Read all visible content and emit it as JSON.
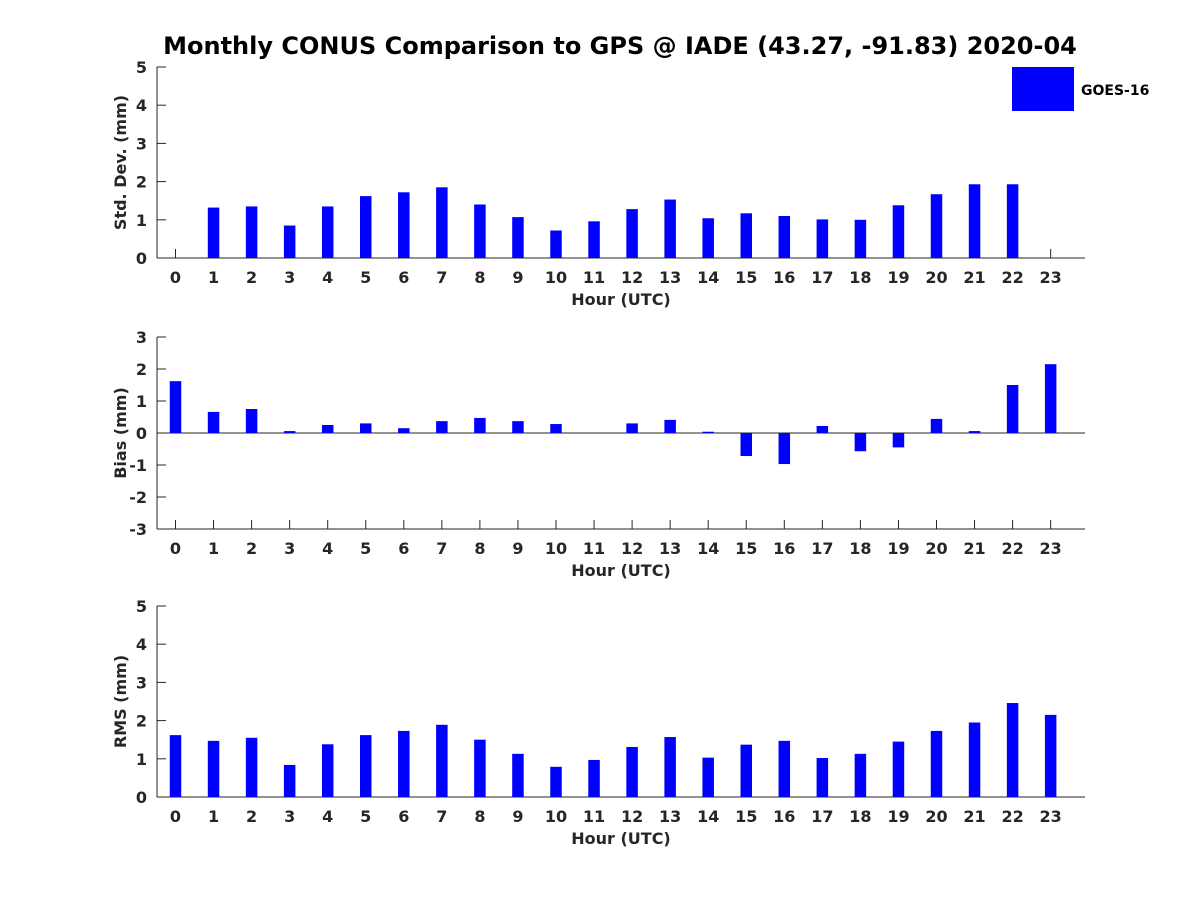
{
  "chart_data": {
    "title": "Monthly CONUS Comparison to GPS @ IADE (43.27, -91.83) 2020-04",
    "legend": {
      "label": "GOES-16",
      "color": "#0000ff",
      "placement": "top-right"
    },
    "bar_color": "#0000ff",
    "panels": [
      {
        "type": "bar",
        "ylabel": "Std. Dev. (mm)",
        "xlabel": "Hour (UTC)",
        "ylim": [
          0,
          5
        ],
        "yticks": [
          0,
          1,
          2,
          3,
          4,
          5
        ],
        "categories": [
          0,
          1,
          2,
          3,
          4,
          5,
          6,
          7,
          8,
          9,
          10,
          11,
          12,
          13,
          14,
          15,
          16,
          17,
          18,
          19,
          20,
          21,
          22,
          23
        ],
        "values": [
          0,
          1.32,
          1.35,
          0.85,
          1.35,
          1.62,
          1.72,
          1.85,
          1.4,
          1.07,
          0.72,
          0.96,
          1.28,
          1.53,
          1.04,
          1.17,
          1.1,
          1.01,
          1.0,
          1.38,
          1.67,
          1.93,
          1.93,
          0
        ]
      },
      {
        "type": "bar",
        "ylabel": "Bias (mm)",
        "xlabel": "Hour (UTC)",
        "ylim": [
          -3,
          3
        ],
        "yticks": [
          -3,
          -2,
          -1,
          0,
          1,
          2,
          3
        ],
        "zero_line": true,
        "categories": [
          0,
          1,
          2,
          3,
          4,
          5,
          6,
          7,
          8,
          9,
          10,
          11,
          12,
          13,
          14,
          15,
          16,
          17,
          18,
          19,
          20,
          21,
          22,
          23
        ],
        "values": [
          1.62,
          0.66,
          0.75,
          0.06,
          0.25,
          0.3,
          0.15,
          0.37,
          0.47,
          0.37,
          0.28,
          0,
          0.3,
          0.41,
          0.04,
          -0.72,
          -0.97,
          0.22,
          -0.57,
          -0.45,
          0.44,
          0.06,
          1.5,
          2.15
        ]
      },
      {
        "type": "bar",
        "ylabel": "RMS (mm)",
        "xlabel": "Hour (UTC)",
        "ylim": [
          0,
          5
        ],
        "yticks": [
          0,
          1,
          2,
          3,
          4,
          5
        ],
        "categories": [
          0,
          1,
          2,
          3,
          4,
          5,
          6,
          7,
          8,
          9,
          10,
          11,
          12,
          13,
          14,
          15,
          16,
          17,
          18,
          19,
          20,
          21,
          22,
          23
        ],
        "values": [
          1.62,
          1.47,
          1.55,
          0.84,
          1.38,
          1.62,
          1.73,
          1.89,
          1.5,
          1.13,
          0.79,
          0.97,
          1.31,
          1.57,
          1.03,
          1.37,
          1.47,
          1.02,
          1.13,
          1.45,
          1.73,
          1.95,
          2.46,
          2.15
        ]
      }
    ]
  }
}
